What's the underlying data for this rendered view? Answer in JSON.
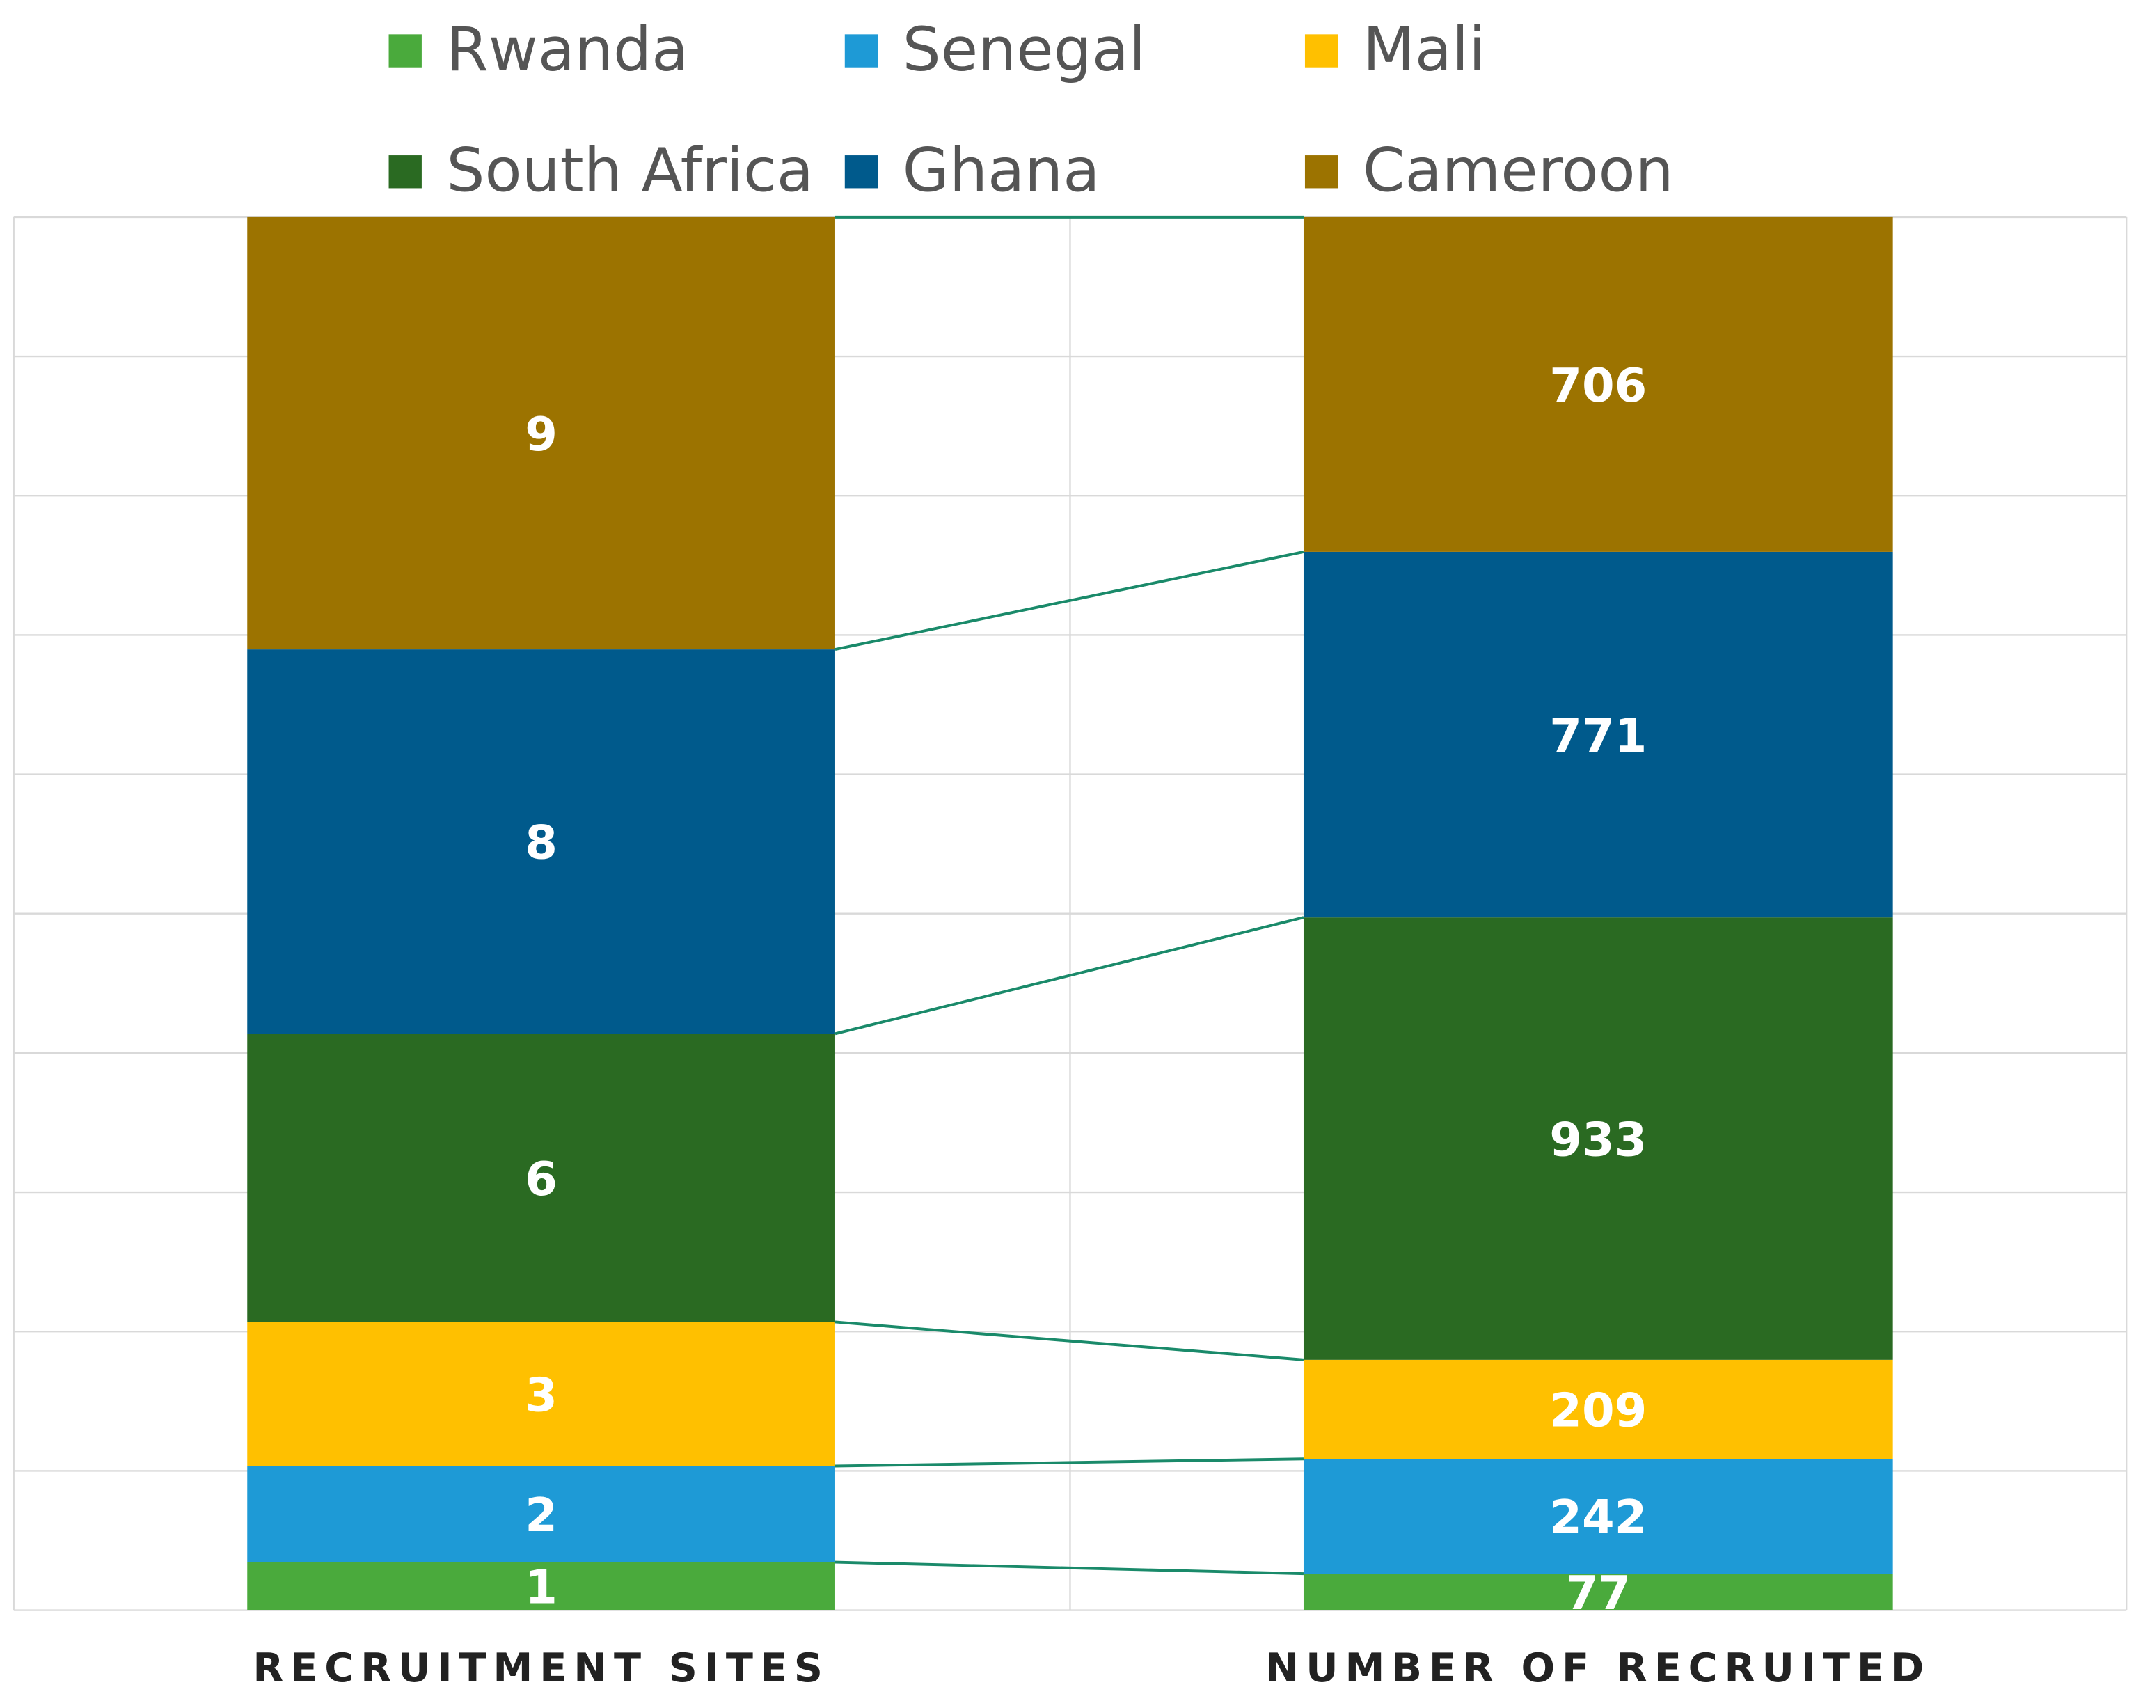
{
  "chart_data": {
    "type": "stacked_bar_100",
    "categories": [
      "RECRUITMENT SITES",
      "NUMBER OF RECRUITED"
    ],
    "series": [
      {
        "name": "Rwanda",
        "color": "#4aaa3c",
        "values": [
          1,
          77
        ]
      },
      {
        "name": "Senegal",
        "color": "#1e9ad6",
        "values": [
          2,
          242
        ]
      },
      {
        "name": "Mali",
        "color": "#ffc000",
        "values": [
          3,
          209
        ]
      },
      {
        "name": "South Africa",
        "color": "#2a6a22",
        "values": [
          6,
          933
        ]
      },
      {
        "name": "Ghana",
        "color": "#005a8c",
        "values": [
          8,
          771
        ]
      },
      {
        "name": "Cameroon",
        "color": "#9c7300",
        "values": [
          9,
          706
        ]
      }
    ],
    "grid": true,
    "legend": "top"
  }
}
